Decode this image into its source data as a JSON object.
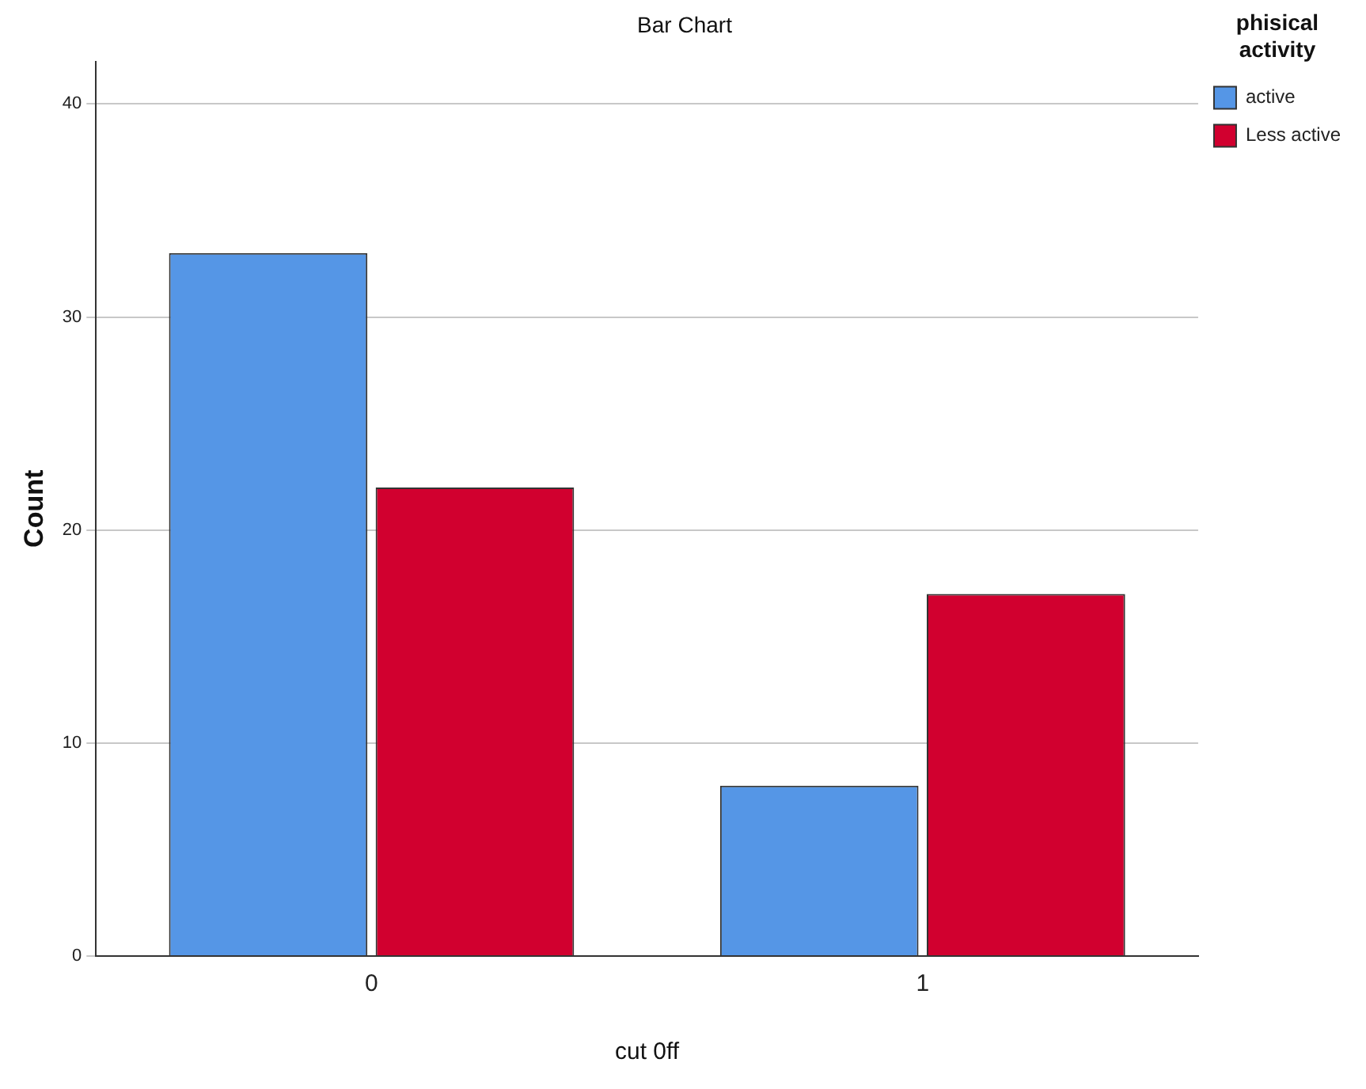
{
  "chart_data": {
    "type": "bar",
    "title": "Bar Chart",
    "xlabel": "cut 0ff",
    "ylabel": "Count",
    "legend_title": "phisical activity",
    "categories": [
      "0",
      "1"
    ],
    "series": [
      {
        "name": "active",
        "color": "#5596e6",
        "values": [
          33,
          8
        ]
      },
      {
        "name": "Less active",
        "color": "#d1002f",
        "values": [
          22,
          17
        ]
      }
    ],
    "ylim": [
      0,
      42
    ],
    "yticks": [
      0,
      10,
      20,
      30,
      40
    ],
    "grid": "y",
    "legend": "top right"
  }
}
